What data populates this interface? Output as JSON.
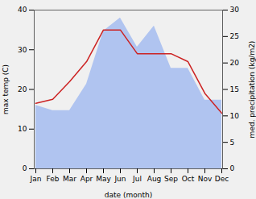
{
  "chart_data": {
    "type": "line",
    "categories": [
      "Jan",
      "Feb",
      "Mar",
      "Apr",
      "May",
      "Jun",
      "Jul",
      "Aug",
      "Sep",
      "Oct",
      "Nov",
      "Dec"
    ],
    "series": [
      {
        "type": "area",
        "axis": "y2",
        "color": "#b0c4f0",
        "values": [
          12,
          11,
          11,
          16,
          26,
          28.5,
          23,
          27,
          19,
          19,
          13,
          13
        ]
      },
      {
        "type": "line",
        "color": "#cc2222",
        "values": [
          16.5,
          17.5,
          22,
          27,
          35,
          35,
          29,
          29,
          29,
          27,
          19,
          14
        ]
      }
    ],
    "xlabel": "date (month)",
    "ylabel": "max temp (C)",
    "y2label": "med. precipitation (kg/m2)",
    "ylim": [
      0,
      40
    ],
    "yticks": [
      0,
      10,
      20,
      30,
      40
    ],
    "y2lim": [
      0,
      30
    ],
    "y2ticks": [
      0,
      5,
      10,
      15,
      20,
      25,
      30
    ],
    "grid": false
  }
}
